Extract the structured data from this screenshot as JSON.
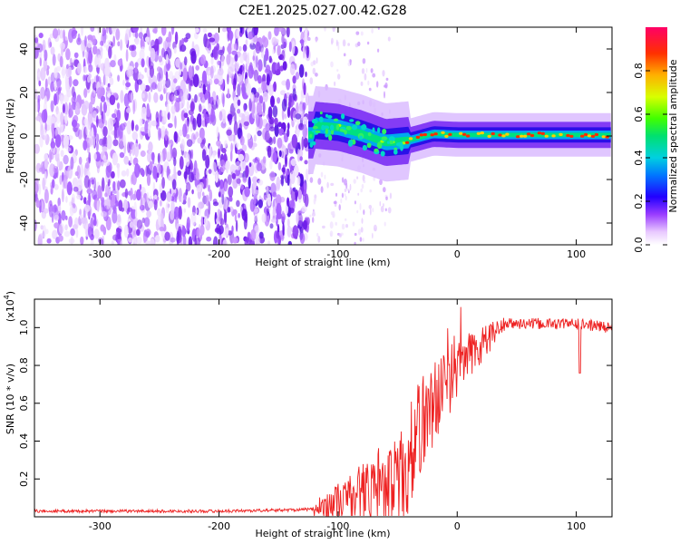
{
  "title": "C2E1.2025.027.00.42.G28",
  "chart_data": [
    {
      "type": "heatmap",
      "xlabel": "Height of straight line (km)",
      "ylabel": "Frequency (Hz)",
      "xlim": [
        -355,
        130
      ],
      "ylim": [
        -50,
        50
      ],
      "x_ticks": [
        -300,
        -200,
        -100,
        0,
        100
      ],
      "x_tick_labels": [
        "-300",
        "-200",
        "-100",
        "0",
        "100"
      ],
      "y_ticks": [
        -40,
        -20,
        0,
        20,
        40
      ],
      "y_tick_labels": [
        "-40",
        "-20",
        "0",
        "20",
        "40"
      ],
      "colorbar": {
        "label": "Normalized spectral amplitude",
        "range": [
          0,
          1
        ],
        "ticks": [
          0.0,
          0.2,
          0.4,
          0.6,
          0.8
        ],
        "tick_labels": [
          "0.0",
          "0.2",
          "0.4",
          "0.6",
          "0.8"
        ]
      },
      "ridge": {
        "description_values": [
          {
            "x": -120,
            "freq": 5
          },
          {
            "x": -100,
            "freq": 4
          },
          {
            "x": -80,
            "freq": 1
          },
          {
            "x": -60,
            "freq": -3
          },
          {
            "x": -40,
            "freq": -2
          },
          {
            "x": -20,
            "freq": 1
          },
          {
            "x": 0,
            "freq": 0.5
          },
          {
            "x": 50,
            "freq": 0.5
          },
          {
            "x": 100,
            "freq": 0.5
          },
          {
            "x": 130,
            "freq": 0.5
          }
        ]
      },
      "noise_region_x": [
        -355,
        -125
      ],
      "signal_region_x": [
        -125,
        130
      ],
      "grid": false
    },
    {
      "type": "line",
      "xlabel": "Height of straight line (km)",
      "ylabel": "SNR (10 * v/v)",
      "y_multiplier_label": "(x10",
      "y_multiplier_exp": "4",
      "xlim": [
        -355,
        130
      ],
      "ylim": [
        0,
        1.15
      ],
      "x_ticks": [
        -300,
        -200,
        -100,
        0,
        100
      ],
      "x_tick_labels": [
        "-300",
        "-200",
        "-100",
        "0",
        "100"
      ],
      "y_ticks": [
        0.2,
        0.4,
        0.6,
        0.8,
        1.0
      ],
      "y_tick_labels": [
        "0.2",
        "0.4",
        "0.6",
        "0.8",
        "1.0"
      ],
      "series": [
        {
          "color": "#ee2222",
          "anchors": [
            {
              "x": -355,
              "y": 0.03
            },
            {
              "x": -200,
              "y": 0.03
            },
            {
              "x": -150,
              "y": 0.035
            },
            {
              "x": -120,
              "y": 0.04
            },
            {
              "x": -100,
              "y": 0.08
            },
            {
              "x": -80,
              "y": 0.12
            },
            {
              "x": -60,
              "y": 0.2
            },
            {
              "x": -50,
              "y": 0.15
            },
            {
              "x": -40,
              "y": 0.3
            },
            {
              "x": -30,
              "y": 0.5
            },
            {
              "x": -20,
              "y": 0.6
            },
            {
              "x": -10,
              "y": 0.7
            },
            {
              "x": 0,
              "y": 0.78
            },
            {
              "x": 10,
              "y": 0.85
            },
            {
              "x": 20,
              "y": 0.9
            },
            {
              "x": 30,
              "y": 0.97
            },
            {
              "x": 40,
              "y": 1.02
            },
            {
              "x": 60,
              "y": 1.02
            },
            {
              "x": 80,
              "y": 1.02
            },
            {
              "x": 100,
              "y": 1.02
            },
            {
              "x": 130,
              "y": 1.0
            }
          ]
        }
      ],
      "grid": false
    }
  ]
}
